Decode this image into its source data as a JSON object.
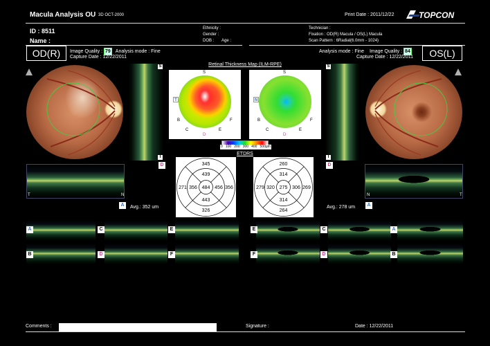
{
  "header": {
    "title": "Macula Analysis OU",
    "exam_code": "3D OCT-2000",
    "print_date_label": "Print Date : 2011/12/22",
    "brand": "TOPCON"
  },
  "patient": {
    "id_label": "ID : 8511",
    "name_label": "Name :",
    "ethnicity_label": "Ethnicity :",
    "gender_label": "Gender :",
    "dob_label": "DOB :",
    "age_label": "Age :",
    "technician_label": "Technician :",
    "fixation_label": "Fixation : OD(R) Macula / OS(L) Macula",
    "scan_pattern_label": "Scan Pattern : 6Radial(6.0mm - 1024)"
  },
  "od": {
    "eye_label": "OD(R)",
    "image_quality_label": "Image Quality :",
    "image_quality_value": "79",
    "analysis_mode": "Analysis mode : Fine",
    "capture_date": "Capture Date : 12/22/2011",
    "avg_label": "Avg.: 352 um",
    "etdrs": {
      "outer_top": "345",
      "outer_left": "271",
      "outer_right": "356",
      "outer_bottom": "326",
      "inner_top": "439",
      "inner_left": "356",
      "inner_right": "456",
      "inner_bottom": "443",
      "center": "484"
    }
  },
  "os": {
    "eye_label": "OS(L)",
    "image_quality_label": "Image Quality :",
    "image_quality_value": "84",
    "analysis_mode": "Analysis mode : Fine",
    "capture_date": "Capture Date : 12/22/2011",
    "avg_label": "Avg.: 278 um",
    "etdrs": {
      "outer_top": "260",
      "outer_left": "279",
      "outer_right": "269",
      "outer_bottom": "264",
      "inner_top": "314",
      "inner_left": "320",
      "inner_right": "306",
      "inner_bottom": "314",
      "center": "275"
    }
  },
  "map": {
    "title": "Retinal Thickness Map (ILM-RPE)",
    "etdrs_title": "ETDRS",
    "scale_ticks": [
      "0",
      "100",
      "200",
      "300",
      "400",
      "500µm"
    ],
    "scale_colors": [
      "#ffffff",
      "#4a00a8",
      "#0044ff",
      "#00c8ff",
      "#22dd22",
      "#ffff00",
      "#ff8800",
      "#ff0000",
      "#ffffff"
    ],
    "map_letters": {
      "s": "S",
      "n": "N",
      "t": "T",
      "i": "I",
      "b": "B",
      "e": "E",
      "f": "F",
      "d": "D",
      "c": "C"
    }
  },
  "scan_tags": {
    "a": "A",
    "b": "B",
    "c": "C",
    "d": "D",
    "e": "E",
    "f": "F",
    "t": "T",
    "n": "N",
    "s": "S",
    "i": "I"
  },
  "footer": {
    "comments_label": "Comments :",
    "signature_label": "Signature :",
    "date_label": "Date : 12/22/2011"
  },
  "colors": {
    "background": "#000000",
    "quality_badge": "#ccffee",
    "pink_tag": "#d0408a",
    "blue_tag": "#3a72c8",
    "fovea_ring": "#44cc44"
  }
}
